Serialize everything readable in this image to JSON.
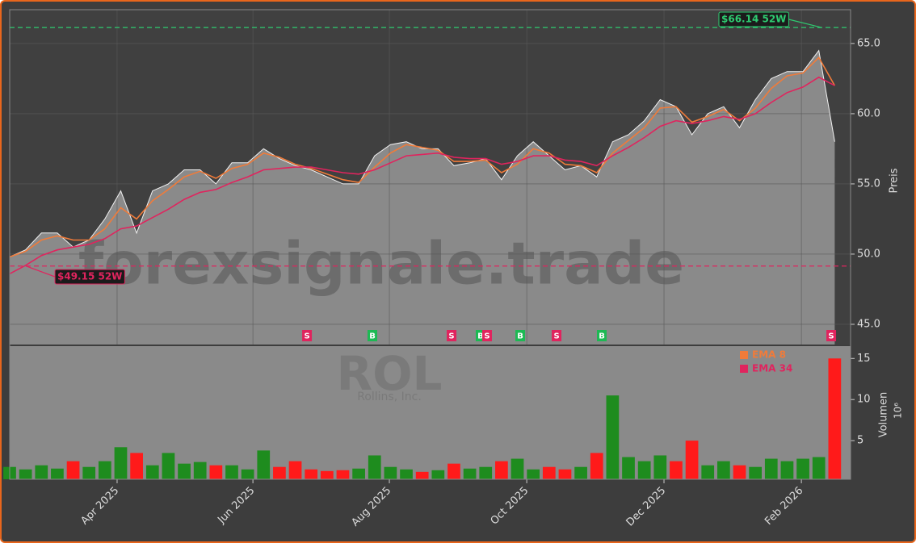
{
  "chart_data": {
    "type": "stock",
    "xlim": [
      0,
      53
    ],
    "xticks": [
      {
        "value": 6.77,
        "label": "Apr 2025"
      },
      {
        "value": 15.33,
        "label": "Jun 2025"
      },
      {
        "value": 23.93,
        "label": "Aug 2025"
      },
      {
        "value": 32.59,
        "label": "Oct 2025"
      },
      {
        "value": 41.24,
        "label": "Dec 2025"
      },
      {
        "value": 49.9,
        "label": "Feb 2026"
      }
    ],
    "ylim": [
      43.56,
      67.41
    ],
    "yticks": [
      {
        "value": 45,
        "label": "45.0"
      },
      {
        "value": 50,
        "label": "50.0"
      },
      {
        "value": 55,
        "label": "55.0"
      },
      {
        "value": 60,
        "label": "60.0"
      },
      {
        "value": 65,
        "label": "65.0"
      }
    ],
    "ylabel": "Preis",
    "grid": true,
    "x": [
      0,
      1,
      2,
      3,
      4,
      5,
      6,
      7,
      8,
      9,
      10,
      11,
      12,
      13,
      14,
      15,
      16,
      17,
      18,
      19,
      20,
      21,
      22,
      23,
      24,
      25,
      26,
      27,
      28,
      29,
      30,
      31,
      32,
      33,
      34,
      35,
      36,
      37,
      38,
      39,
      40,
      41,
      42,
      43,
      44,
      45,
      46,
      47,
      48,
      49,
      50,
      51,
      52
    ],
    "close": {
      "color": "#f2f2f2",
      "area_color": "#8a8a8a",
      "values": [
        49.8,
        50.3,
        51.5,
        51.5,
        50.5,
        51.0,
        52.5,
        54.5,
        51.5,
        54.5,
        55.0,
        56.0,
        56.0,
        55.0,
        56.5,
        56.5,
        57.5,
        56.8,
        56.3,
        56.0,
        55.5,
        55.0,
        55.0,
        57.0,
        57.8,
        58.0,
        57.5,
        57.5,
        56.3,
        56.5,
        56.8,
        55.3,
        57.0,
        58.0,
        57.0,
        56.0,
        56.3,
        55.5,
        58.0,
        58.5,
        59.5,
        61.0,
        60.5,
        58.5,
        60.0,
        60.5,
        59.0,
        61.0,
        62.5,
        63.0,
        63.0,
        64.5,
        58.0
      ]
    },
    "series": [
      {
        "name": "EMA 8",
        "color": "#f07b3a",
        "values": [
          49.8,
          50.2,
          51.0,
          51.3,
          51.0,
          51.0,
          51.8,
          53.3,
          52.5,
          53.8,
          54.6,
          55.5,
          55.9,
          55.4,
          56.1,
          56.4,
          57.2,
          56.9,
          56.4,
          56.1,
          55.7,
          55.3,
          55.1,
          56.2,
          57.2,
          57.8,
          57.6,
          57.4,
          56.6,
          56.6,
          56.7,
          55.8,
          56.4,
          57.5,
          57.2,
          56.4,
          56.3,
          55.8,
          57.2,
          58.1,
          59.0,
          60.4,
          60.5,
          59.4,
          59.8,
          60.3,
          59.5,
          60.4,
          61.8,
          62.7,
          62.9,
          64.0,
          62.0
        ]
      },
      {
        "name": "EMA 34",
        "color": "#e0245e",
        "values": [
          48.6,
          49.2,
          49.9,
          50.3,
          50.5,
          50.7,
          51.1,
          51.8,
          52.0,
          52.6,
          53.2,
          53.9,
          54.4,
          54.6,
          55.1,
          55.5,
          56.0,
          56.1,
          56.2,
          56.2,
          56.0,
          55.8,
          55.7,
          56.0,
          56.5,
          57.0,
          57.1,
          57.2,
          56.9,
          56.8,
          56.8,
          56.4,
          56.6,
          57.0,
          57.0,
          56.7,
          56.6,
          56.3,
          57.0,
          57.6,
          58.3,
          59.1,
          59.5,
          59.3,
          59.5,
          59.8,
          59.6,
          60.0,
          60.8,
          61.5,
          61.9,
          62.6,
          62.0
        ]
      }
    ],
    "high_52w": {
      "value": 66.14,
      "label": "$66.14 52W",
      "color": "#2ecc71"
    },
    "low_52w": {
      "value": 49.15,
      "label": "$49.15 52W",
      "color": "#e0245e"
    },
    "signals": [
      {
        "label": "S",
        "x": 18.74,
        "color": "#e0245e"
      },
      {
        "label": "B",
        "x": 22.86,
        "color": "#1db954"
      },
      {
        "label": "S",
        "x": 27.85,
        "color": "#e0245e"
      },
      {
        "label": "B",
        "x": 29.68,
        "color": "#1db954"
      },
      {
        "label": "S",
        "x": 30.09,
        "color": "#e0245e"
      },
      {
        "label": "B",
        "x": 32.18,
        "color": "#1db954"
      },
      {
        "label": "S",
        "x": 34.47,
        "color": "#e0245e"
      },
      {
        "label": "B",
        "x": 37.32,
        "color": "#1db954"
      },
      {
        "label": "S",
        "x": 51.78,
        "color": "#e0245e"
      }
    ],
    "volume": {
      "label": "Volumen",
      "unit": "10⁶",
      "up_color": "#1e8c1e",
      "down_color": "#ff1a1a",
      "ylim": [
        0.3,
        16.5
      ],
      "yticks": [
        5,
        10,
        15
      ],
      "values": [
        1.8,
        1.5,
        2.0,
        1.6,
        2.5,
        1.8,
        2.5,
        4.2,
        3.5,
        2.0,
        3.5,
        2.2,
        2.4,
        2.0,
        2.0,
        1.5,
        3.8,
        1.8,
        2.5,
        1.5,
        1.3,
        1.4,
        1.6,
        3.2,
        1.8,
        1.5,
        1.2,
        1.4,
        2.2,
        1.6,
        1.8,
        2.5,
        2.8,
        1.5,
        1.8,
        1.5,
        1.8,
        3.5,
        10.5,
        3.0,
        2.5,
        3.2,
        2.5,
        5.0,
        2.0,
        2.5,
        2.0,
        1.8,
        2.8,
        2.5,
        2.8,
        3.0,
        15.0
      ]
    },
    "watermark": "forexsignale.trade",
    "symbol": "ROL",
    "company": "Rollins, Inc."
  }
}
